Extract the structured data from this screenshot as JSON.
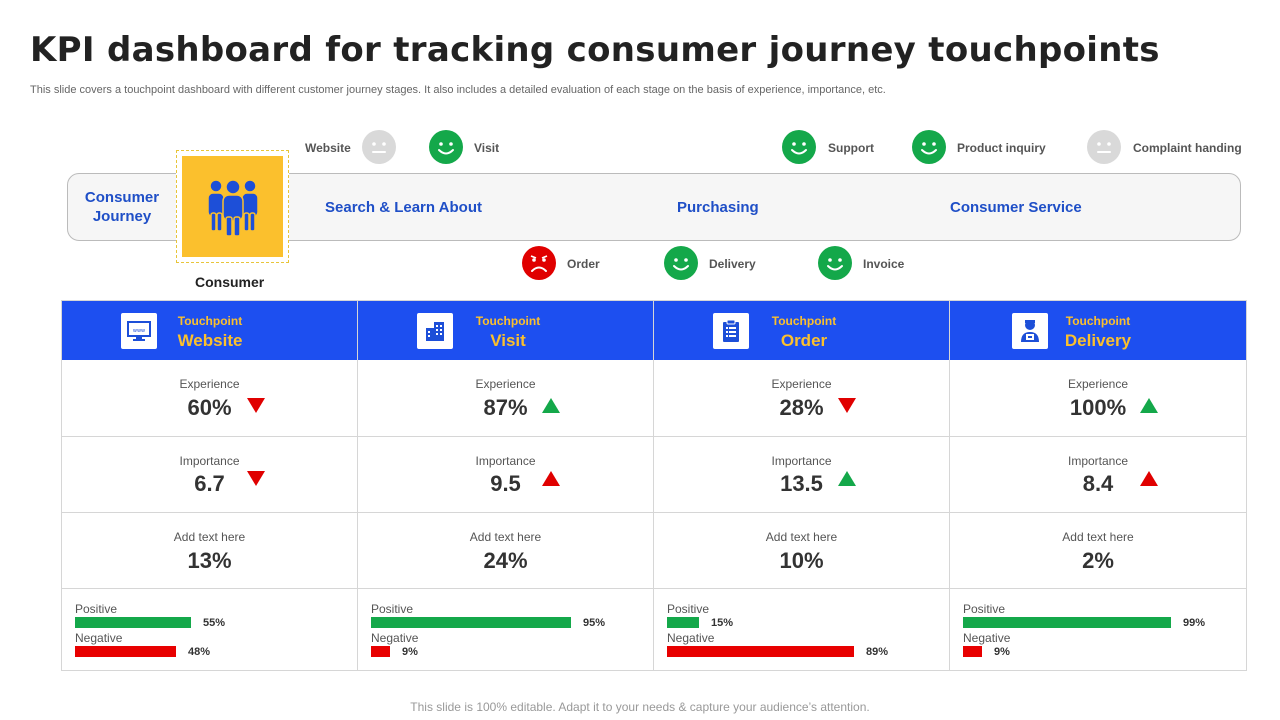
{
  "title": "KPI dashboard for tracking consumer journey touchpoints",
  "subtitle": "This slide covers a touchpoint dashboard with different customer journey stages. It also includes a detailed evaluation of each stage on the basis of experience, importance, etc.",
  "top_faces": [
    {
      "label": "Website",
      "mood": "neutral",
      "color": "#d9d9d9"
    },
    {
      "label": "Visit",
      "mood": "happy",
      "color": "#14a84a"
    },
    {
      "label": "Support",
      "mood": "happy",
      "color": "#14a84a"
    },
    {
      "label": "Product inquiry",
      "mood": "happy",
      "color": "#14a84a"
    },
    {
      "label": "Complaint handing",
      "mood": "neutral",
      "color": "#d9d9d9"
    }
  ],
  "bottom_faces": [
    {
      "label": "Order",
      "mood": "sad",
      "color": "#e00000"
    },
    {
      "label": "Delivery",
      "mood": "happy",
      "color": "#14a84a"
    },
    {
      "label": "Invoice",
      "mood": "happy",
      "color": "#14a84a"
    }
  ],
  "journey": {
    "title": "Consumer Journey",
    "consumer_label": "Consumer",
    "consumer_icon": "people-group-icon",
    "stages": [
      "Search & Learn About",
      "Purchasing",
      "Consumer Service"
    ]
  },
  "touchpoints": [
    {
      "small": "Touchpoint",
      "name": "Website",
      "icon": "monitor-icon",
      "experience_label": "Experience",
      "experience": "60%",
      "experience_trend": "down",
      "importance_label": "Importance",
      "importance": "6.7",
      "importance_trend": "down",
      "extra_label": "Add text here",
      "extra": "13%",
      "positive_label": "Positive",
      "positive": 55,
      "positive_text": "55%",
      "negative_label": "Negative",
      "negative": 48,
      "negative_text": "48%"
    },
    {
      "small": "Touchpoint",
      "name": "Visit",
      "icon": "building-icon",
      "experience_label": "Experience",
      "experience": "87%",
      "experience_trend": "up",
      "importance_label": "Importance",
      "importance": "9.5",
      "importance_trend": "up-red",
      "extra_label": "Add text here",
      "extra": "24%",
      "positive_label": "Positive",
      "positive": 95,
      "positive_text": "95%",
      "negative_label": "Negative",
      "negative": 9,
      "negative_text": "9%"
    },
    {
      "small": "Touchpoint",
      "name": "Order",
      "icon": "clipboard-icon",
      "experience_label": "Experience",
      "experience": "28%",
      "experience_trend": "down",
      "importance_label": "Importance",
      "importance": "13.5",
      "importance_trend": "up",
      "extra_label": "Add text here",
      "extra": "10%",
      "positive_label": "Positive",
      "positive": 15,
      "positive_text": "15%",
      "negative_label": "Negative",
      "negative": 89,
      "negative_text": "89%"
    },
    {
      "small": "Touchpoint",
      "name": "Delivery",
      "icon": "delivery-person-icon",
      "experience_label": "Experience",
      "experience": "100%",
      "experience_trend": "up",
      "importance_label": "Importance",
      "importance": "8.4",
      "importance_trend": "up-red",
      "extra_label": "Add text here",
      "extra": "2%",
      "positive_label": "Positive",
      "positive": 99,
      "positive_text": "99%",
      "negative_label": "Negative",
      "negative": 9,
      "negative_text": "9%"
    }
  ],
  "footer": "This slide is 100% editable. Adapt it to your needs & capture your audience’s attention."
}
